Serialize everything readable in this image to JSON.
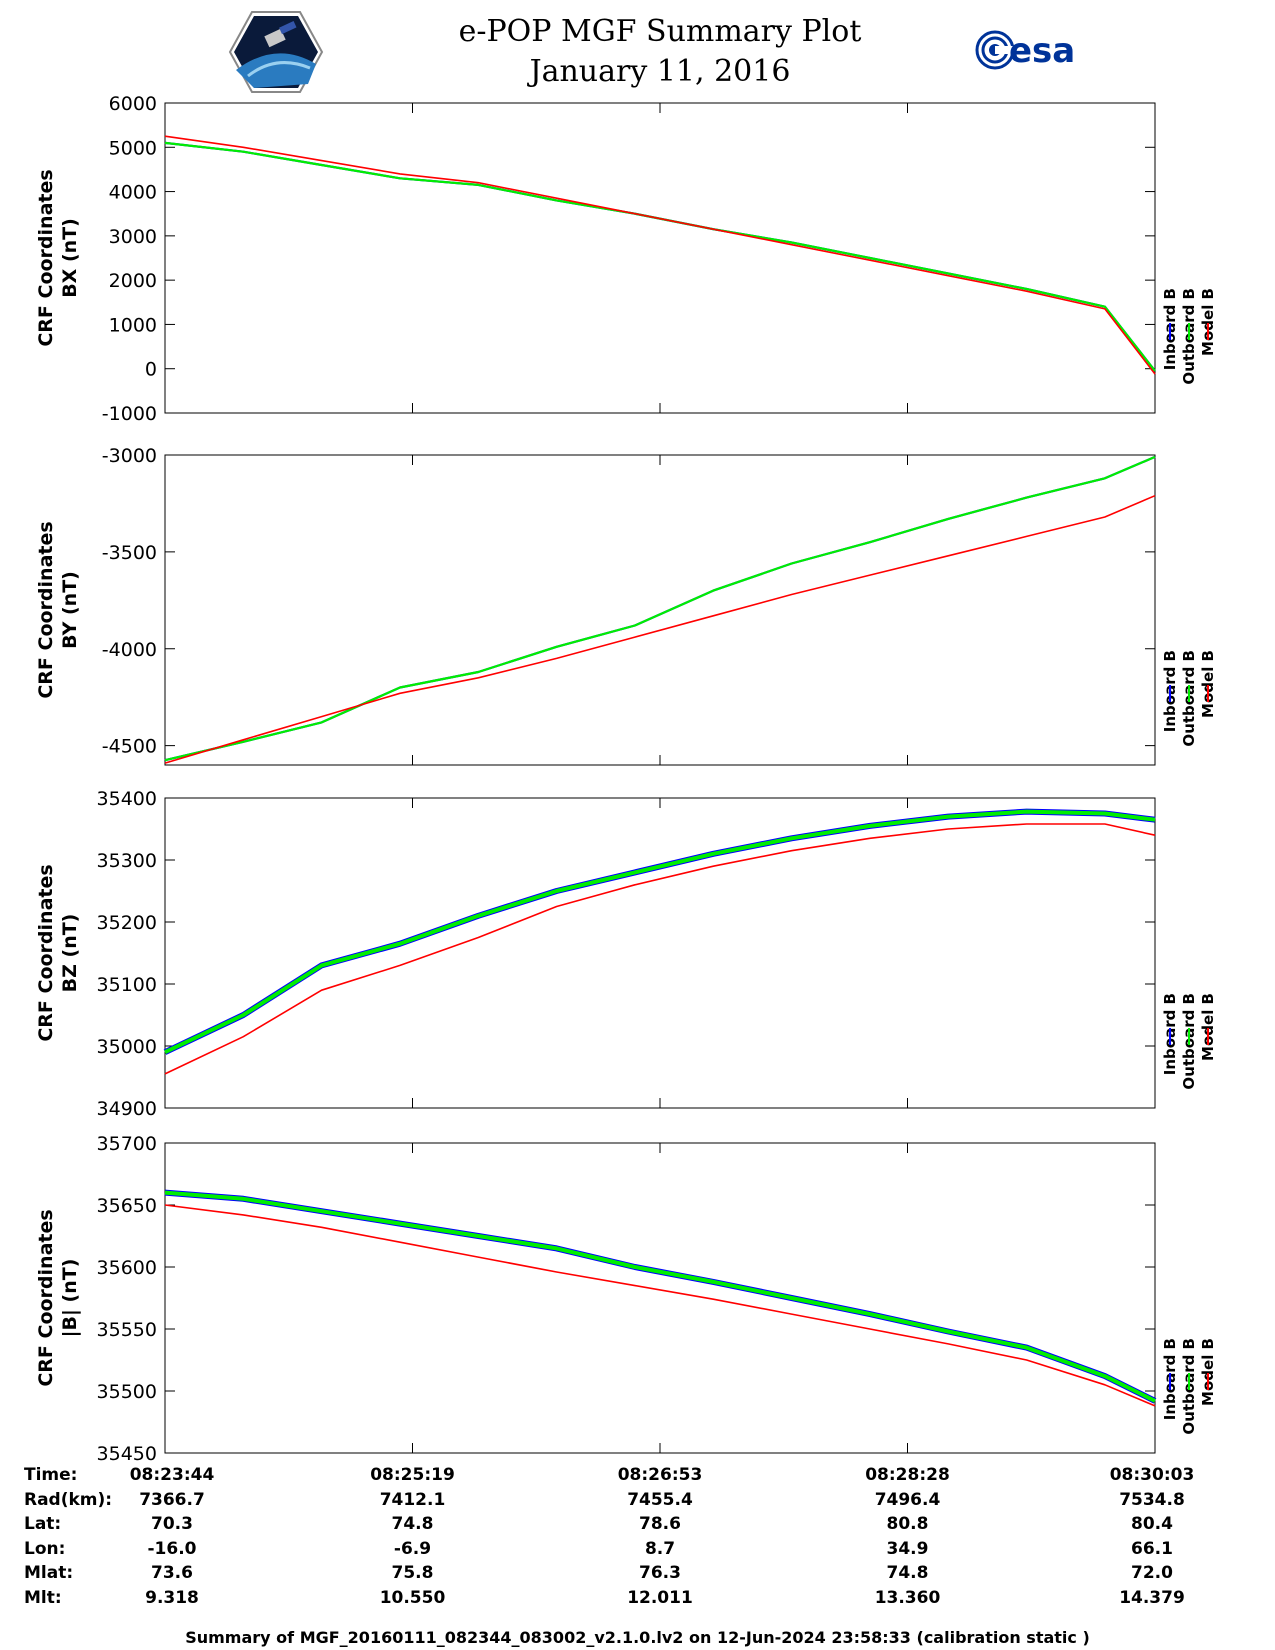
{
  "header": {
    "title_line1": "e-POP MGF Summary Plot",
    "title_line2": "January 11, 2016"
  },
  "logos": {
    "left": "cassiope-mission-logo",
    "right": "esa-logo",
    "right_text": "esa"
  },
  "colors": {
    "inboard": "#0000ff",
    "outboard": "#00ee00",
    "model": "#ff0000",
    "frame": "#000000"
  },
  "legend": [
    "Inboard B",
    "Outboard B",
    "Model B"
  ],
  "chart_data": [
    {
      "type": "line",
      "ylabel_line1": "CRF Coordinates",
      "ylabel_line2": "BX (nT)",
      "ylim": [
        -1000,
        6000
      ],
      "yticks": [
        -1000,
        0,
        1000,
        2000,
        3000,
        4000,
        5000,
        6000
      ],
      "x_minutes": [
        0,
        0.5,
        1.0,
        1.5,
        2.0,
        2.5,
        3.0,
        3.5,
        4.0,
        4.5,
        5.0,
        5.5,
        6.0,
        6.32
      ],
      "series": [
        {
          "name": "Inboard B",
          "values": [
            5100,
            4900,
            4600,
            4300,
            4150,
            3800,
            3500,
            3150,
            2850,
            2500,
            2150,
            1800,
            1400,
            -50
          ]
        },
        {
          "name": "Outboard B",
          "values": [
            5100,
            4900,
            4600,
            4300,
            4150,
            3800,
            3500,
            3150,
            2850,
            2500,
            2150,
            1800,
            1400,
            -50
          ]
        },
        {
          "name": "Model B",
          "values": [
            5250,
            5000,
            4700,
            4400,
            4200,
            3850,
            3500,
            3150,
            2800,
            2450,
            2100,
            1750,
            1350,
            -120
          ]
        }
      ]
    },
    {
      "type": "line",
      "ylabel_line1": "CRF Coordinates",
      "ylabel_line2": "BY (nT)",
      "ylim": [
        -4600,
        -3000
      ],
      "yticks": [
        -4500,
        -4000,
        -3500,
        -3000
      ],
      "x_minutes": [
        0,
        0.5,
        1.0,
        1.5,
        2.0,
        2.5,
        3.0,
        3.5,
        4.0,
        4.5,
        5.0,
        5.5,
        6.0,
        6.32
      ],
      "series": [
        {
          "name": "Inboard B",
          "values": [
            -4575,
            -4480,
            -4380,
            -4200,
            -4120,
            -3990,
            -3880,
            -3700,
            -3560,
            -3450,
            -3330,
            -3220,
            -3120,
            -3010
          ]
        },
        {
          "name": "Outboard B",
          "values": [
            -4575,
            -4480,
            -4380,
            -4200,
            -4120,
            -3990,
            -3880,
            -3700,
            -3560,
            -3450,
            -3330,
            -3220,
            -3120,
            -3010
          ]
        },
        {
          "name": "Model B",
          "values": [
            -4590,
            -4470,
            -4350,
            -4230,
            -4150,
            -4050,
            -3940,
            -3830,
            -3720,
            -3620,
            -3520,
            -3420,
            -3320,
            -3210
          ]
        }
      ]
    },
    {
      "type": "line",
      "ylabel_line1": "CRF Coordinates",
      "ylabel_line2": "BZ (nT)",
      "ylim": [
        34900,
        35400
      ],
      "yticks": [
        34900,
        35000,
        35100,
        35200,
        35300,
        35400
      ],
      "x_minutes": [
        0,
        0.5,
        1.0,
        1.5,
        2.0,
        2.5,
        3.0,
        3.5,
        4.0,
        4.5,
        5.0,
        5.5,
        6.0,
        6.32
      ],
      "series": [
        {
          "name": "Inboard B",
          "values": [
            34990,
            35050,
            35130,
            35165,
            35210,
            35250,
            35280,
            35310,
            35335,
            35355,
            35370,
            35378,
            35375,
            35365
          ]
        },
        {
          "name": "Outboard B",
          "values": [
            34990,
            35050,
            35130,
            35165,
            35210,
            35250,
            35280,
            35310,
            35335,
            35355,
            35370,
            35378,
            35375,
            35365
          ]
        },
        {
          "name": "Model B",
          "values": [
            34955,
            35015,
            35090,
            35130,
            35175,
            35225,
            35260,
            35290,
            35315,
            35335,
            35350,
            35358,
            35358,
            35340
          ]
        }
      ]
    },
    {
      "type": "line",
      "ylabel_line1": "CRF Coordinates",
      "ylabel_line2": "|B| (nT)",
      "ylim": [
        35450,
        35700
      ],
      "yticks": [
        35450,
        35500,
        35550,
        35600,
        35650,
        35700
      ],
      "x_minutes": [
        0,
        0.5,
        1.0,
        1.5,
        2.0,
        2.5,
        3.0,
        3.5,
        4.0,
        4.5,
        5.0,
        5.5,
        6.0,
        6.32
      ],
      "series": [
        {
          "name": "Inboard B",
          "values": [
            35660,
            35655,
            35645,
            35635,
            35625,
            35615,
            35600,
            35588,
            35575,
            35562,
            35548,
            35535,
            35512,
            35492
          ]
        },
        {
          "name": "Outboard B",
          "values": [
            35660,
            35655,
            35645,
            35635,
            35625,
            35615,
            35600,
            35588,
            35575,
            35562,
            35548,
            35535,
            35512,
            35492
          ]
        },
        {
          "name": "Model B",
          "values": [
            35650,
            35642,
            35632,
            35620,
            35608,
            35596,
            35585,
            35574,
            35562,
            35550,
            35538,
            35525,
            35505,
            35488
          ]
        }
      ]
    }
  ],
  "footer": {
    "rows": [
      {
        "label": "Time:",
        "values": [
          "08:23:44",
          "08:25:19",
          "08:26:53",
          "08:28:28",
          "08:30:03"
        ]
      },
      {
        "label": "Rad(km):",
        "values": [
          "7366.7",
          "7412.1",
          "7455.4",
          "7496.4",
          "7534.8"
        ]
      },
      {
        "label": "Lat:",
        "values": [
          "70.3",
          "74.8",
          "78.6",
          "80.8",
          "80.4"
        ]
      },
      {
        "label": "Lon:",
        "values": [
          "-16.0",
          "-6.9",
          "8.7",
          "34.9",
          "66.1"
        ]
      },
      {
        "label": "Mlat:",
        "values": [
          "73.6",
          "75.8",
          "76.3",
          "74.8",
          "72.0"
        ]
      },
      {
        "label": "Mlt:",
        "values": [
          "9.318",
          "10.550",
          "12.011",
          "13.360",
          "14.379"
        ]
      }
    ],
    "note": "Summary of MGF_20160111_082344_083002_v2.1.0.lv2 on 12-Jun-2024 23:58:33 (calibration static )"
  }
}
